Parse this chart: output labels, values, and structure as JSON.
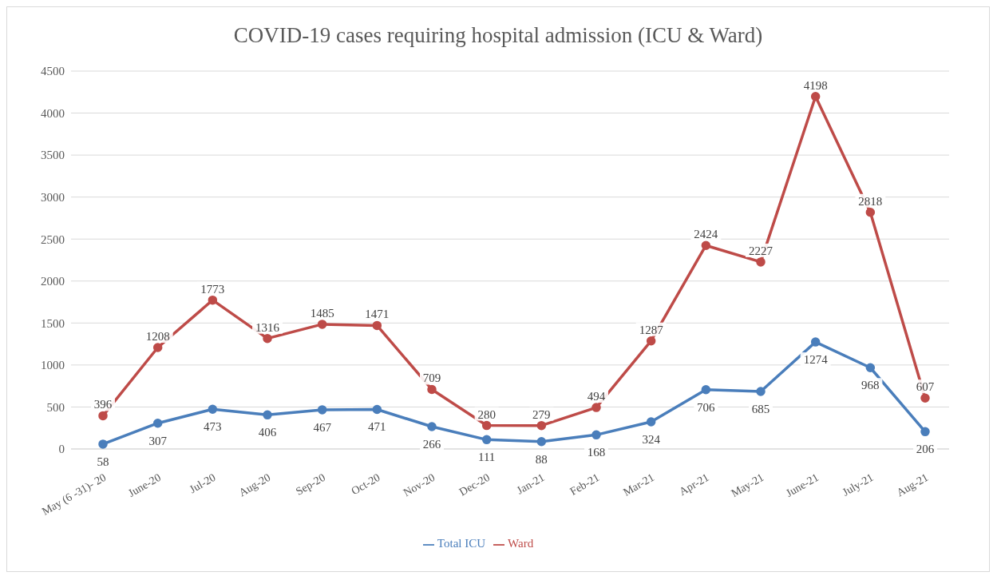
{
  "chart_data": {
    "type": "line",
    "title": "COVID-19 cases requiring hospital admission (ICU & Ward)",
    "categories": [
      "May (6 -31)- 20",
      "June-20",
      "Jul-20",
      "Aug-20",
      "Sep-20",
      "Oct-20",
      "Nov-20",
      "Dec-20",
      "Jan-21",
      "Feb-21",
      "Mar-21",
      "Apr-21",
      "May-21",
      "June-21",
      "July-21",
      "Aug-21"
    ],
    "series": [
      {
        "name": "Total ICU",
        "color": "#4a7ebb",
        "values": [
          58,
          307,
          473,
          406,
          467,
          471,
          266,
          111,
          88,
          168,
          324,
          706,
          685,
          1274,
          968,
          206
        ]
      },
      {
        "name": "Ward",
        "color": "#be4b48",
        "values": [
          396,
          1208,
          1773,
          1316,
          1485,
          1471,
          709,
          280,
          279,
          494,
          1287,
          2424,
          2227,
          4198,
          2818,
          607
        ]
      }
    ],
    "ylim": [
      0,
      4500
    ],
    "yticks": [
      0,
      500,
      1000,
      1500,
      2000,
      2500,
      3000,
      3500,
      4000,
      4500
    ],
    "grid": "y",
    "legend": "bottom",
    "marker": "circle",
    "line_style": "solid",
    "data_labels": true
  }
}
